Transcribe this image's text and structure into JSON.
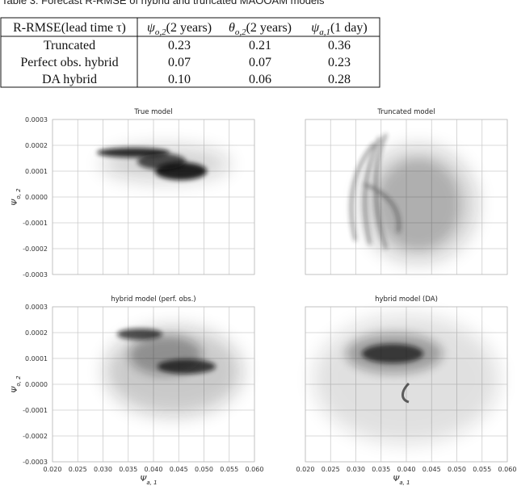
{
  "caption": "Table 3: Forecast R-RMSE of hybrid and truncated MAOOAM models",
  "table": {
    "header": [
      {
        "text": "R-RMSE(lead time τ)"
      },
      {
        "symbol": "ψ",
        "sub": "o,2",
        "rest": "(2 years)"
      },
      {
        "symbol": "θ",
        "sub": "o,2",
        "rest": "(2 years)"
      },
      {
        "symbol": "ψ",
        "sub": "a,1",
        "rest": "(1 day)"
      }
    ],
    "rows": [
      [
        "Truncated",
        "0.23",
        "0.21",
        "0.36"
      ],
      [
        "Perfect obs. hybrid",
        "0.07",
        "0.07",
        "0.23"
      ],
      [
        "DA hybrid",
        "0.10",
        "0.06",
        "0.28"
      ]
    ]
  },
  "figure": {
    "xlabel": {
      "symbol": "Ψ",
      "sub": "a, 1"
    },
    "ylabel": {
      "symbol": "Ψ",
      "sub": "o, 2"
    },
    "xlim": [
      0.02,
      0.06
    ],
    "ylim": [
      -0.0003,
      0.0003
    ],
    "xticks": [
      {
        "value": 0.02,
        "label": "0.020"
      },
      0.025,
      {
        "value": 0.03,
        "label": "0.030"
      },
      0.035,
      {
        "value": 0.04,
        "label": "0.040"
      },
      0.045,
      {
        "value": 0.05,
        "label": "0.050"
      },
      0.055,
      {
        "value": 0.06,
        "label": "0.060"
      }
    ],
    "yticks": [
      -0.0003,
      -0.0002,
      -0.0001,
      {
        "value": 0,
        "label": "0.0000"
      },
      0.0001,
      0.0002,
      0.0003
    ],
    "grid": true,
    "panels": [
      {
        "title": "True model"
      },
      {
        "title": "Truncated model"
      },
      {
        "title": "hybrid model (perf. obs.)"
      },
      {
        "title": "hybrid model (DA)"
      }
    ]
  }
}
